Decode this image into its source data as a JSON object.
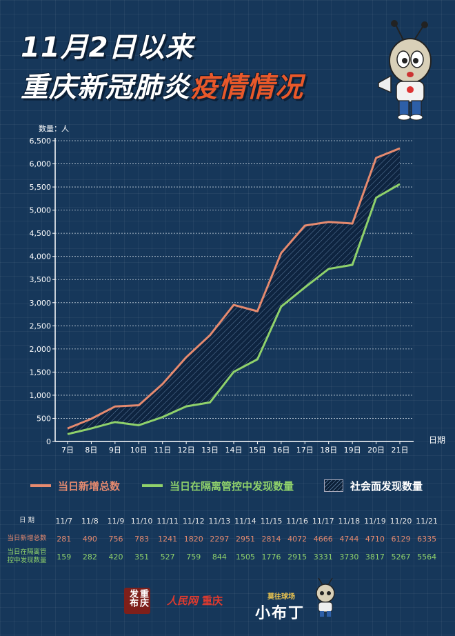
{
  "title": {
    "line1": "11月2日以来",
    "line2_white": "重庆新冠肺炎",
    "line2_red": "疫情情况"
  },
  "chart_data": {
    "type": "line",
    "ylabel": "数量：人",
    "xlabel": "日期",
    "ylim": [
      0,
      6500
    ],
    "yticks": [
      "0",
      "500",
      "1,000",
      "1,500",
      "2,000",
      "2,500",
      "3,000",
      "3,500",
      "4,000",
      "4,500",
      "5,000",
      "5,500",
      "6,000",
      "6,500"
    ],
    "categories": [
      "7日",
      "8日",
      "9日",
      "10日",
      "11日",
      "12日",
      "13日",
      "14日",
      "15日",
      "16日",
      "17日",
      "18日",
      "19日",
      "20日",
      "21日"
    ],
    "series": [
      {
        "name": "当日新增总数",
        "values": [
          281,
          490,
          756,
          783,
          1241,
          1820,
          2297,
          2951,
          2814,
          4072,
          4666,
          4744,
          4710,
          6129,
          6335
        ],
        "color": "#e58a6f"
      },
      {
        "name": "当日在隔离管控中发现数量",
        "values": [
          159,
          282,
          420,
          351,
          527,
          759,
          844,
          1505,
          1776,
          2915,
          3331,
          3730,
          3817,
          5267,
          5564
        ],
        "color": "#8fd16b"
      }
    ],
    "area_label": "社会面发现数量",
    "grid": true,
    "legend": "bottom"
  },
  "table": {
    "header_label": "日 期",
    "dates": [
      "11/7",
      "11/8",
      "11/9",
      "11/10",
      "11/11",
      "11/12",
      "11/13",
      "11/14",
      "11/15",
      "11/16",
      "11/17",
      "11/18",
      "11/19",
      "11/20",
      "11/21"
    ],
    "row1_label": "当日新增总数",
    "row1": [
      "281",
      "490",
      "756",
      "783",
      "1241",
      "1820",
      "2297",
      "2951",
      "2814",
      "4072",
      "4666",
      "4744",
      "4710",
      "6129",
      "6335"
    ],
    "row2_label_a": "当日在隔离管",
    "row2_label_b": "控中发现数量",
    "row2": [
      "159",
      "282",
      "420",
      "351",
      "527",
      "759",
      "844",
      "1505",
      "1776",
      "2915",
      "3331",
      "3730",
      "3817",
      "5267",
      "5564"
    ]
  },
  "footer": {
    "logo1": "重庆发布",
    "logo2": "人民网",
    "logo2b": "重庆",
    "logo3_small": "莫往球场",
    "logo3_big": "小布丁"
  },
  "colors": {
    "background": "#16375a",
    "red_series": "#e58a6f",
    "green_series": "#8fd16b",
    "title_red": "#e8582a"
  }
}
